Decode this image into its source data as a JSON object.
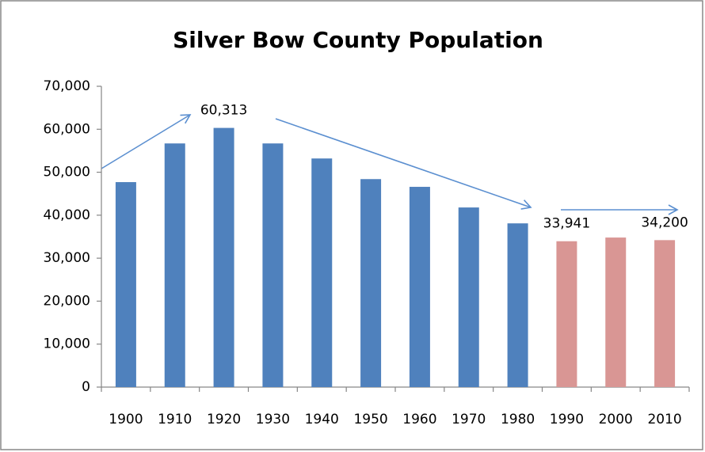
{
  "chart_data": {
    "type": "bar",
    "title": "Silver Bow County Population",
    "categories": [
      "1900",
      "1910",
      "1920",
      "1930",
      "1940",
      "1950",
      "1960",
      "1970",
      "1980",
      "1990",
      "2000",
      "2010"
    ],
    "values": [
      47700,
      56700,
      60313,
      56700,
      53200,
      48400,
      46600,
      41800,
      38100,
      33941,
      34800,
      34200
    ],
    "value_labels": [
      null,
      null,
      "60,313",
      null,
      null,
      null,
      null,
      null,
      null,
      "33,941",
      null,
      "34,200"
    ],
    "colors": [
      "#4f81bd",
      "#4f81bd",
      "#4f81bd",
      "#4f81bd",
      "#4f81bd",
      "#4f81bd",
      "#4f81bd",
      "#4f81bd",
      "#4f81bd",
      "#d99694",
      "#d99694",
      "#d99694"
    ],
    "ylim": [
      0,
      70000
    ],
    "yticks": [
      0,
      {
        "value": 10000,
        "label": "10,000"
      },
      {
        "value": 20000,
        "label": "20,000"
      },
      {
        "value": 30000,
        "label": "30,000"
      },
      {
        "value": 40000,
        "label": "40,000"
      },
      {
        "value": 50000,
        "label": "50,000"
      },
      {
        "value": 60000,
        "label": "60,000"
      },
      {
        "value": 70000,
        "label": "70,000"
      }
    ],
    "grid": false
  }
}
